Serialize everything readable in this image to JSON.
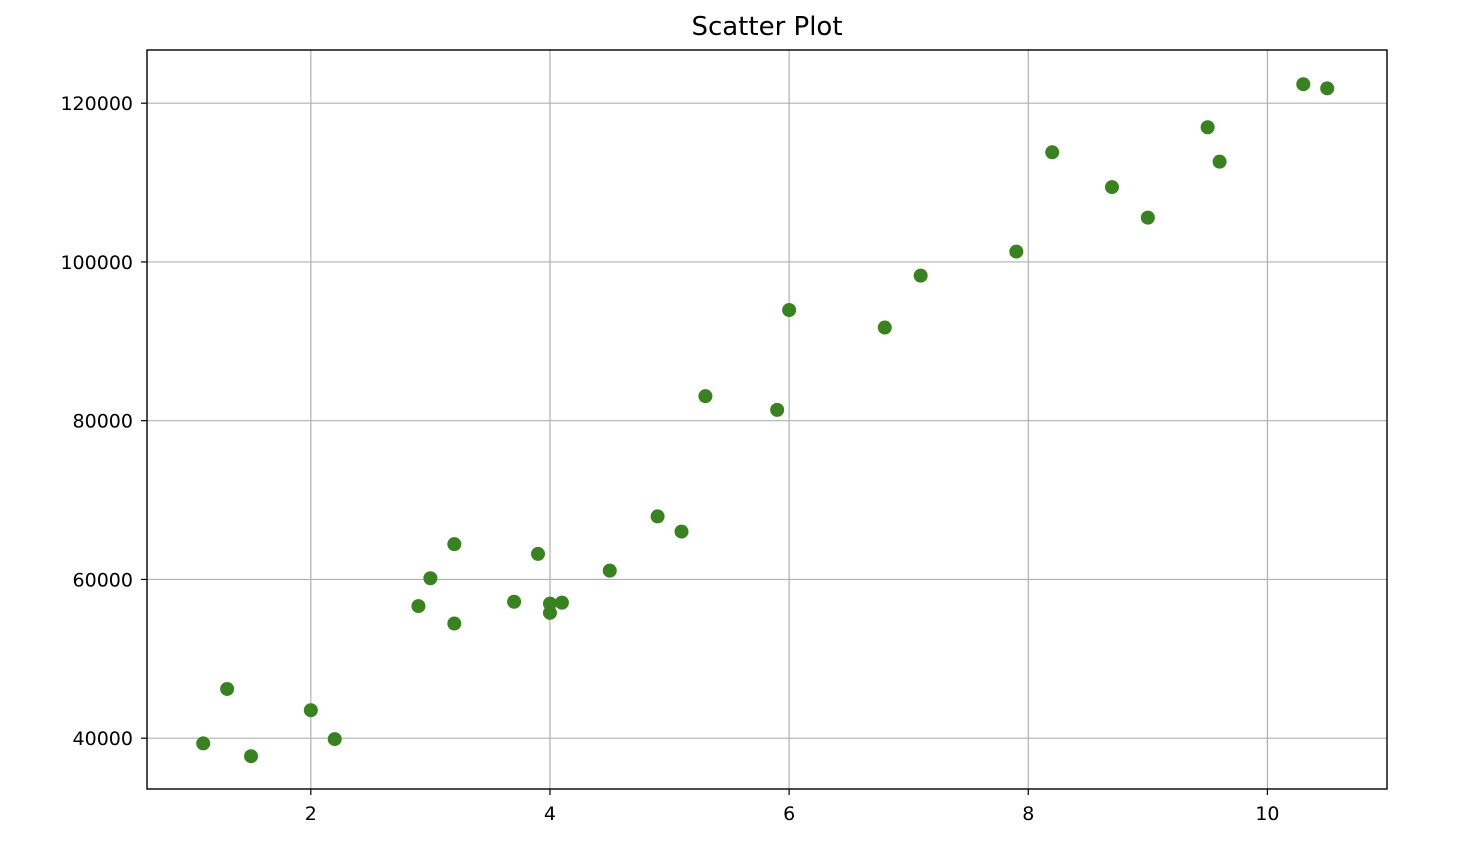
{
  "chart_data": {
    "type": "scatter",
    "title": "Scatter Plot",
    "xlabel": "",
    "ylabel": "",
    "xlim": [
      0.63,
      11.0
    ],
    "ylim": [
      33600,
      126700
    ],
    "x_ticks": [
      2,
      4,
      6,
      8,
      10
    ],
    "y_ticks": [
      40000,
      60000,
      80000,
      100000,
      120000
    ],
    "x_tick_labels": [
      "2",
      "4",
      "6",
      "8",
      "10"
    ],
    "y_tick_labels": [
      "40000",
      "60000",
      "80000",
      "100000",
      "120000"
    ],
    "grid": true,
    "marker_color": "#38821f",
    "points": [
      {
        "x": 1.1,
        "y": 39343
      },
      {
        "x": 1.3,
        "y": 46205
      },
      {
        "x": 1.5,
        "y": 37731
      },
      {
        "x": 2.0,
        "y": 43525
      },
      {
        "x": 2.2,
        "y": 39891
      },
      {
        "x": 2.9,
        "y": 56642
      },
      {
        "x": 3.0,
        "y": 60150
      },
      {
        "x": 3.2,
        "y": 54445
      },
      {
        "x": 3.2,
        "y": 64445
      },
      {
        "x": 3.7,
        "y": 57189
      },
      {
        "x": 3.9,
        "y": 63218
      },
      {
        "x": 4.0,
        "y": 55794
      },
      {
        "x": 4.0,
        "y": 56957
      },
      {
        "x": 4.1,
        "y": 57081
      },
      {
        "x": 4.5,
        "y": 61111
      },
      {
        "x": 4.9,
        "y": 67938
      },
      {
        "x": 5.1,
        "y": 66029
      },
      {
        "x": 5.3,
        "y": 83088
      },
      {
        "x": 5.9,
        "y": 81363
      },
      {
        "x": 6.0,
        "y": 93940
      },
      {
        "x": 6.8,
        "y": 91738
      },
      {
        "x": 7.1,
        "y": 98273
      },
      {
        "x": 7.9,
        "y": 101302
      },
      {
        "x": 8.2,
        "y": 113812
      },
      {
        "x": 8.7,
        "y": 109431
      },
      {
        "x": 9.0,
        "y": 105582
      },
      {
        "x": 9.5,
        "y": 116969
      },
      {
        "x": 9.6,
        "y": 112635
      },
      {
        "x": 10.3,
        "y": 122391
      },
      {
        "x": 10.5,
        "y": 121872
      }
    ]
  }
}
